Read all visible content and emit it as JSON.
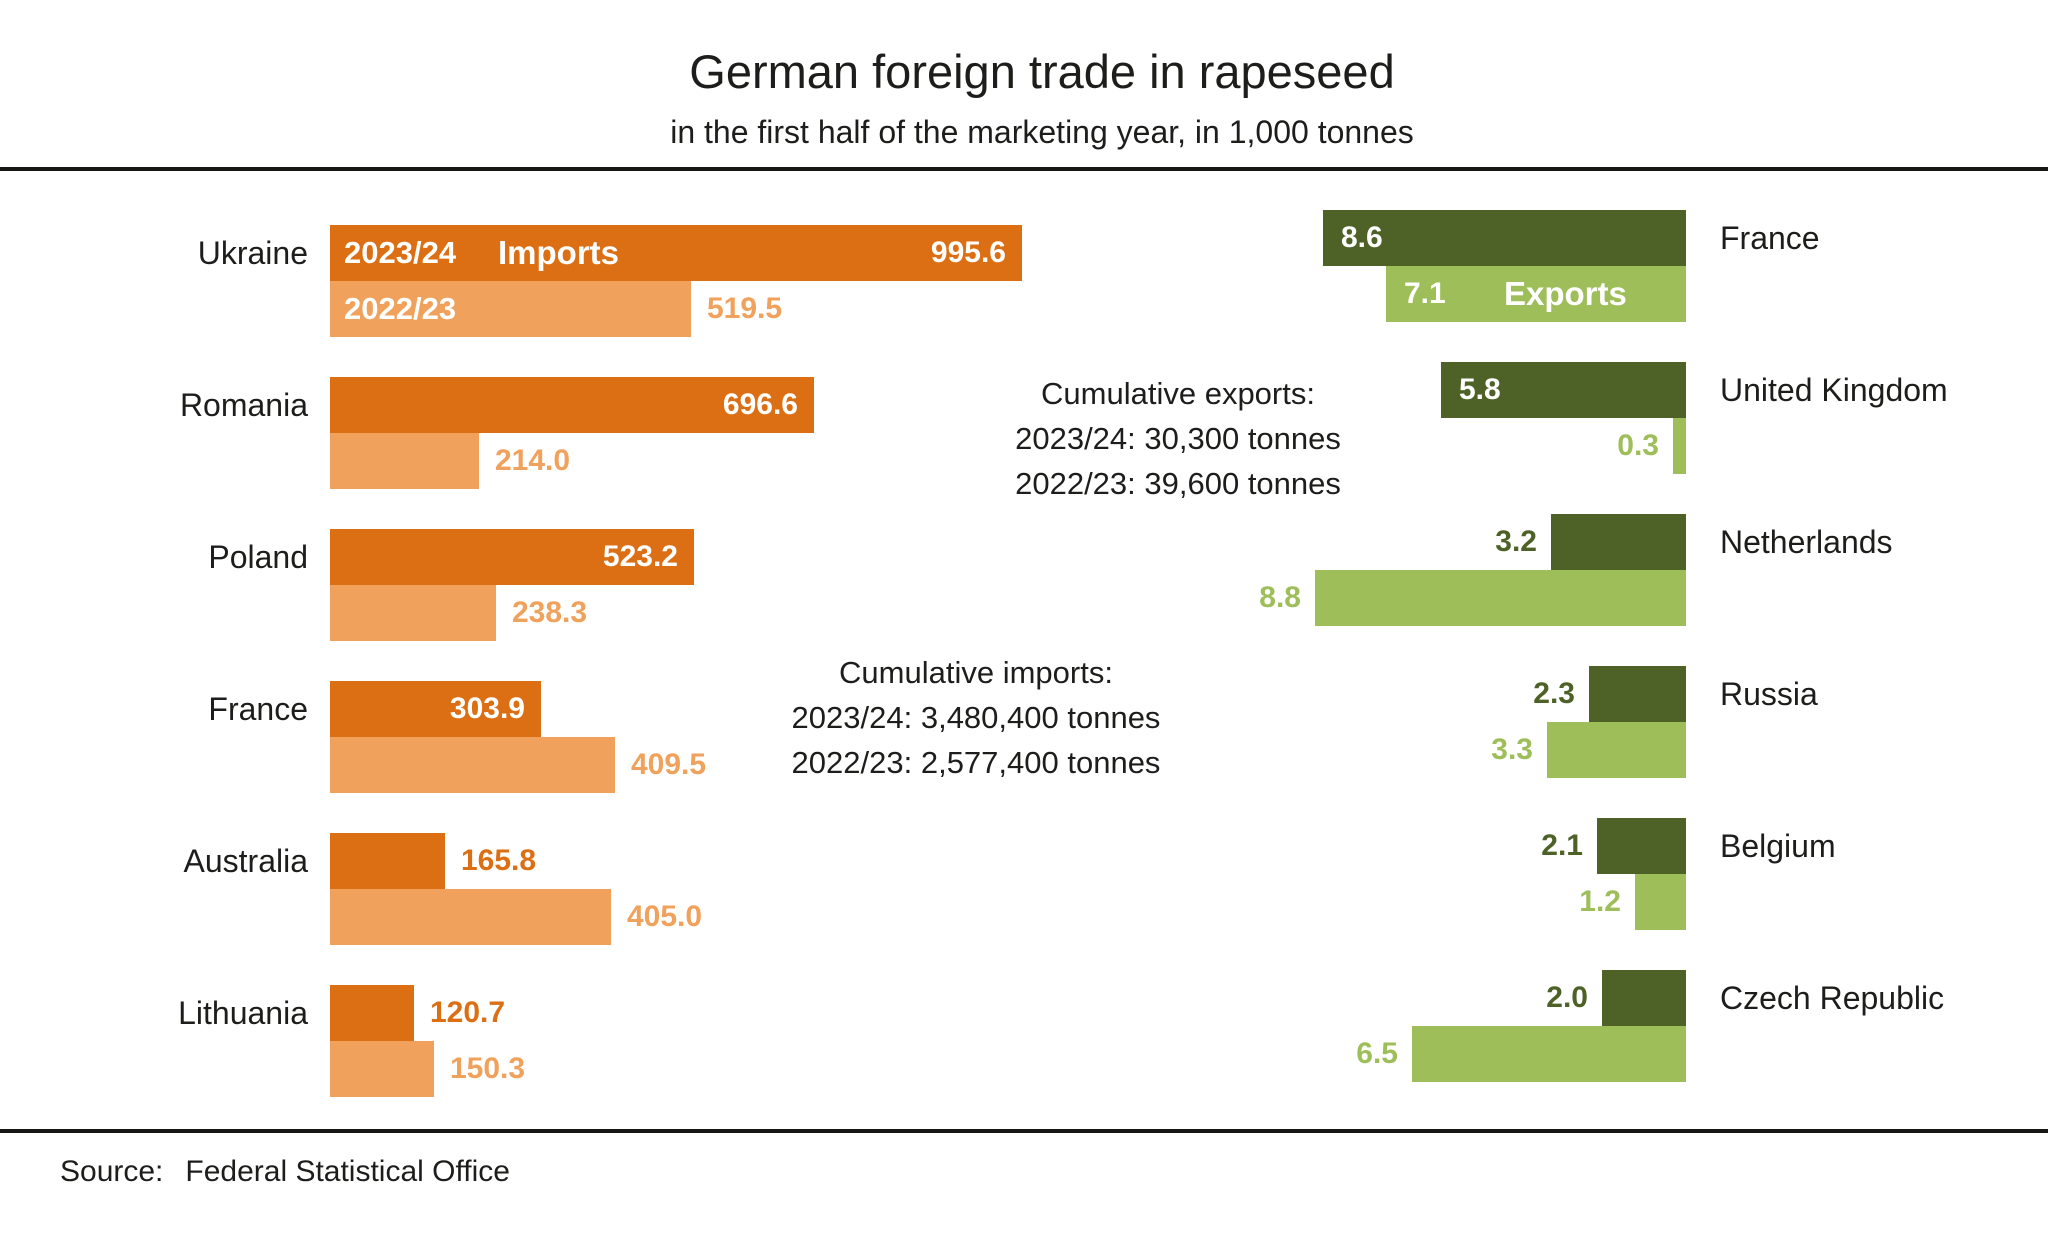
{
  "title": "German foreign trade in rapeseed",
  "subtitle": "in the first half of the marketing year, in 1,000 tonnes",
  "legend": {
    "imports": "Imports",
    "exports": "Exports"
  },
  "annotations": {
    "cumulative_exports": {
      "title": "Cumulative exports:",
      "line_2023_24": "2023/24: 30,300 tonnes",
      "line_2022_23": "2022/23: 39,600 tonnes"
    },
    "cumulative_imports": {
      "title": "Cumulative imports:",
      "line_2023_24": "2023/24: 3,480,400 tonnes",
      "line_2022_23": "2022/23: 2,577,400 tonnes"
    }
  },
  "source": {
    "label": "Source:",
    "value": "Federal Statistical Office"
  },
  "colors": {
    "orange_dark": "#DC6F14",
    "orange_light": "#F0A15B",
    "green_dark": "#4E6227",
    "green_light": "#9DBE59",
    "text": "#1d1d1b",
    "rule": "#161615",
    "bar_label_white": "#ffffff"
  },
  "chart_data": {
    "type": "bar",
    "unit": "1,000 tonnes",
    "series_labels": [
      "2023/24",
      "2022/23"
    ],
    "imports": {
      "title": "Imports",
      "categories": [
        "Ukraine",
        "Romania",
        "Poland",
        "France",
        "Australia",
        "Lithuania"
      ],
      "series": [
        {
          "name": "2023/24",
          "values": [
            995.6,
            696.6,
            523.2,
            303.9,
            165.8,
            120.7
          ]
        },
        {
          "name": "2022/23",
          "values": [
            519.5,
            214.0,
            238.3,
            409.5,
            405.0,
            150.3
          ]
        }
      ],
      "label_inside": [
        [
          true,
          true,
          true,
          true,
          false,
          false
        ],
        [
          false,
          false,
          false,
          false,
          false,
          false
        ]
      ]
    },
    "exports": {
      "title": "Exports",
      "categories": [
        "France",
        "United Kingdom",
        "Netherlands",
        "Russia",
        "Belgium",
        "Czech Republic"
      ],
      "series": [
        {
          "name": "2023/24",
          "values": [
            8.6,
            5.8,
            3.2,
            2.3,
            2.1,
            2.0
          ]
        },
        {
          "name": "2022/23",
          "values": [
            7.1,
            0.3,
            8.8,
            3.3,
            1.2,
            6.5
          ]
        }
      ],
      "label_inside": [
        [
          true,
          true,
          false,
          false,
          false,
          false
        ],
        [
          true,
          false,
          false,
          false,
          false,
          false
        ]
      ]
    },
    "layout": {
      "grid": false,
      "legend_position": "inside-first-bars",
      "orientation": "horizontal",
      "imports_axis_range": [
        0,
        1000
      ],
      "exports_axis_range": [
        0,
        9
      ]
    }
  }
}
